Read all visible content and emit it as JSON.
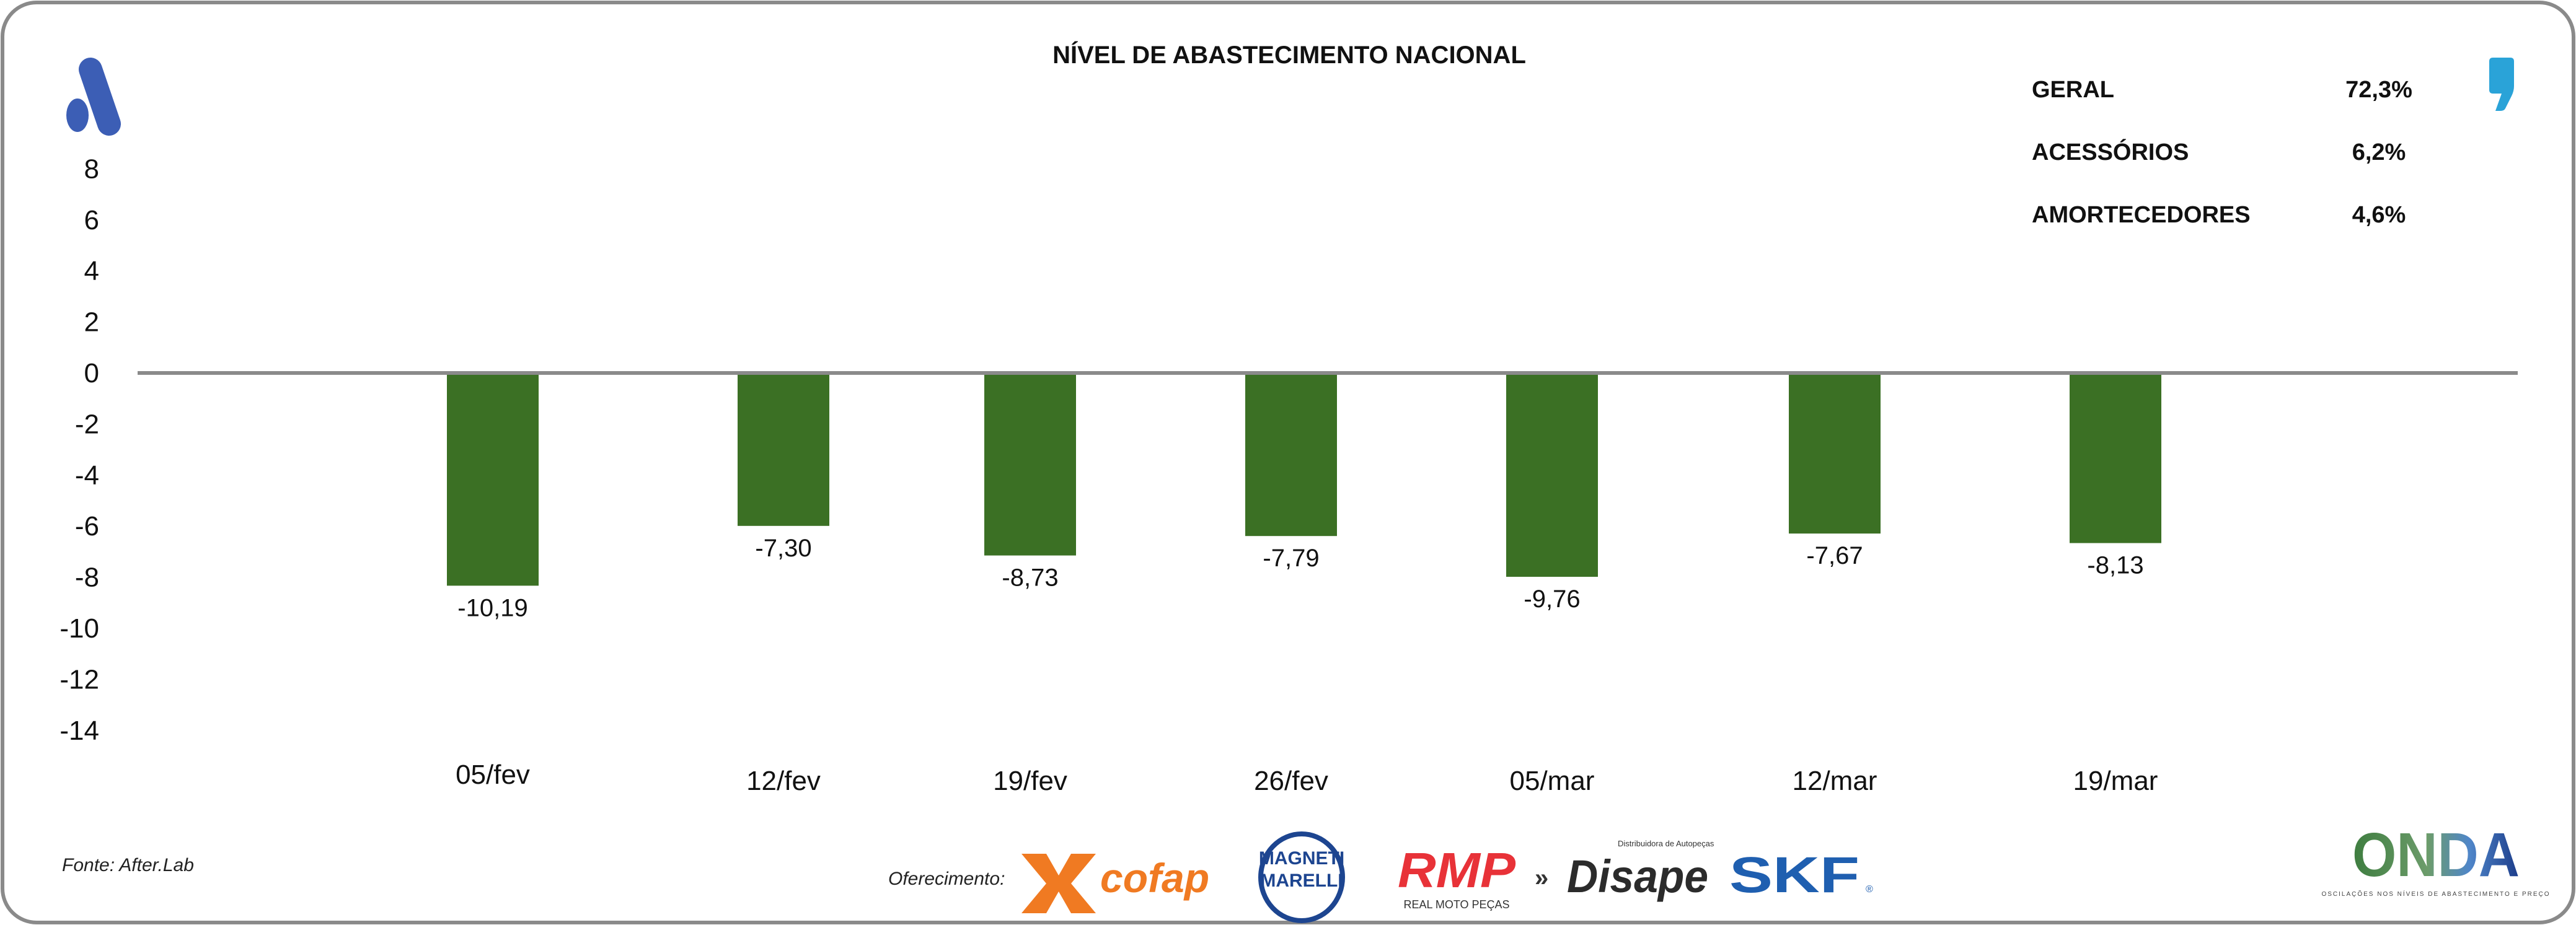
{
  "chart_data": {
    "type": "bar",
    "title": "NÍVEL DE ABASTECIMENTO NACIONAL",
    "categories": [
      "05/fev",
      "12/fev",
      "19/fev",
      "26/fev",
      "05/mar",
      "12/mar",
      "19/mar"
    ],
    "values": [
      -10.19,
      -7.3,
      -8.73,
      -7.79,
      -9.76,
      -7.67,
      -8.13
    ],
    "value_labels": [
      "-10,19",
      "-7,30",
      "-8,73",
      "-7,79",
      "-9,76",
      "-7,67",
      "-8,13"
    ],
    "yticks": [
      "8",
      "6",
      "4",
      "2",
      "0",
      "-2",
      "-4",
      "-6",
      "-8",
      "-10",
      "-12",
      "-14"
    ],
    "ylim": [
      -14,
      8
    ],
    "xlabel": "",
    "ylabel": "",
    "grid": false,
    "bar_color": "#3b7024"
  },
  "stats": [
    {
      "label": "GERAL",
      "value": "72,3%"
    },
    {
      "label": "ACESSÓRIOS",
      "value": "6,2%"
    },
    {
      "label": "AMORTECEDORES",
      "value": "4,6%"
    }
  ],
  "footer": {
    "source": "Fonte: After.Lab",
    "sponsors_label": "Oferecimento:",
    "sponsors": [
      "cofap",
      "MAGNETI MARELLI",
      "RMP",
      "Disape",
      "SKF"
    ],
    "rmp_sub": "REAL MOTO PEÇAS",
    "disape_sub": "Distribuidora de Autopeças",
    "onda": "ONDA",
    "onda_sub": "OSCILAÇÕES NOS NÍVEIS DE ABASTECIMENTO E PREÇO"
  },
  "colors": {
    "accent_blue": "#3c5eb5",
    "comma_blue": "#2aa3d8",
    "border": "#8a8a8a"
  }
}
